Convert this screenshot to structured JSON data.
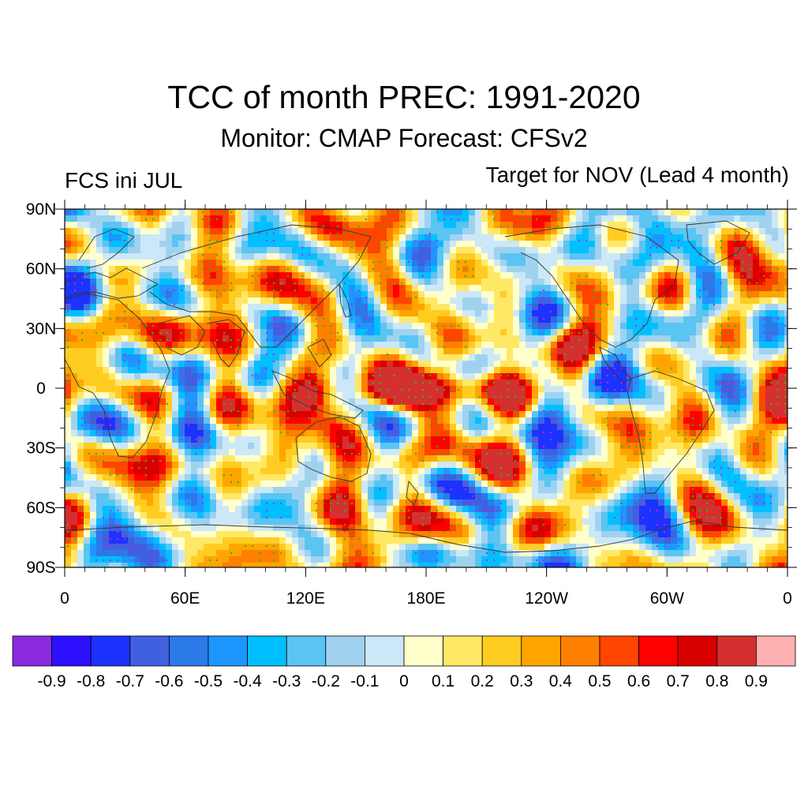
{
  "title": "TCC of month PREC: 1991-2020",
  "subtitle": "Monitor: CMAP   Forecast: CFSv2",
  "left_label": "FCS ini JUL",
  "right_label": "Target for NOV (Lead 4 month)",
  "lat_labels": [
    "90N",
    "60N",
    "30N",
    "0",
    "30S",
    "60S",
    "90S"
  ],
  "lon_labels": [
    "0",
    "60E",
    "120E",
    "180E",
    "120W",
    "60W",
    "0"
  ],
  "colorbar": {
    "colors": [
      "#8a2be2",
      "#2c10ff",
      "#1c32ff",
      "#4060e0",
      "#2a7ae8",
      "#1e96ff",
      "#00bfff",
      "#5ac4f2",
      "#a0d2f0",
      "#cce8f8",
      "#ffffcc",
      "#ffe866",
      "#ffcc22",
      "#ffa500",
      "#ff7f00",
      "#ff4500",
      "#ff0000",
      "#d90000",
      "#d43030",
      "#ffb0b0"
    ],
    "labels": [
      "-0.9",
      "-0.8",
      "-0.7",
      "-0.6",
      "-0.5",
      "-0.4",
      "-0.3",
      "-0.2",
      "-0.1",
      "0",
      "0.1",
      "0.2",
      "0.3",
      "0.4",
      "0.5",
      "0.6",
      "0.7",
      "0.8",
      "0.9"
    ]
  },
  "map": {
    "lat_range": [
      -90,
      90
    ],
    "lon_range": [
      0,
      360
    ],
    "description_fill": "temporal correlation coefficient field",
    "significance_dots_color": "#22bb22",
    "high_correlation_band": "equatorial Pacific"
  }
}
